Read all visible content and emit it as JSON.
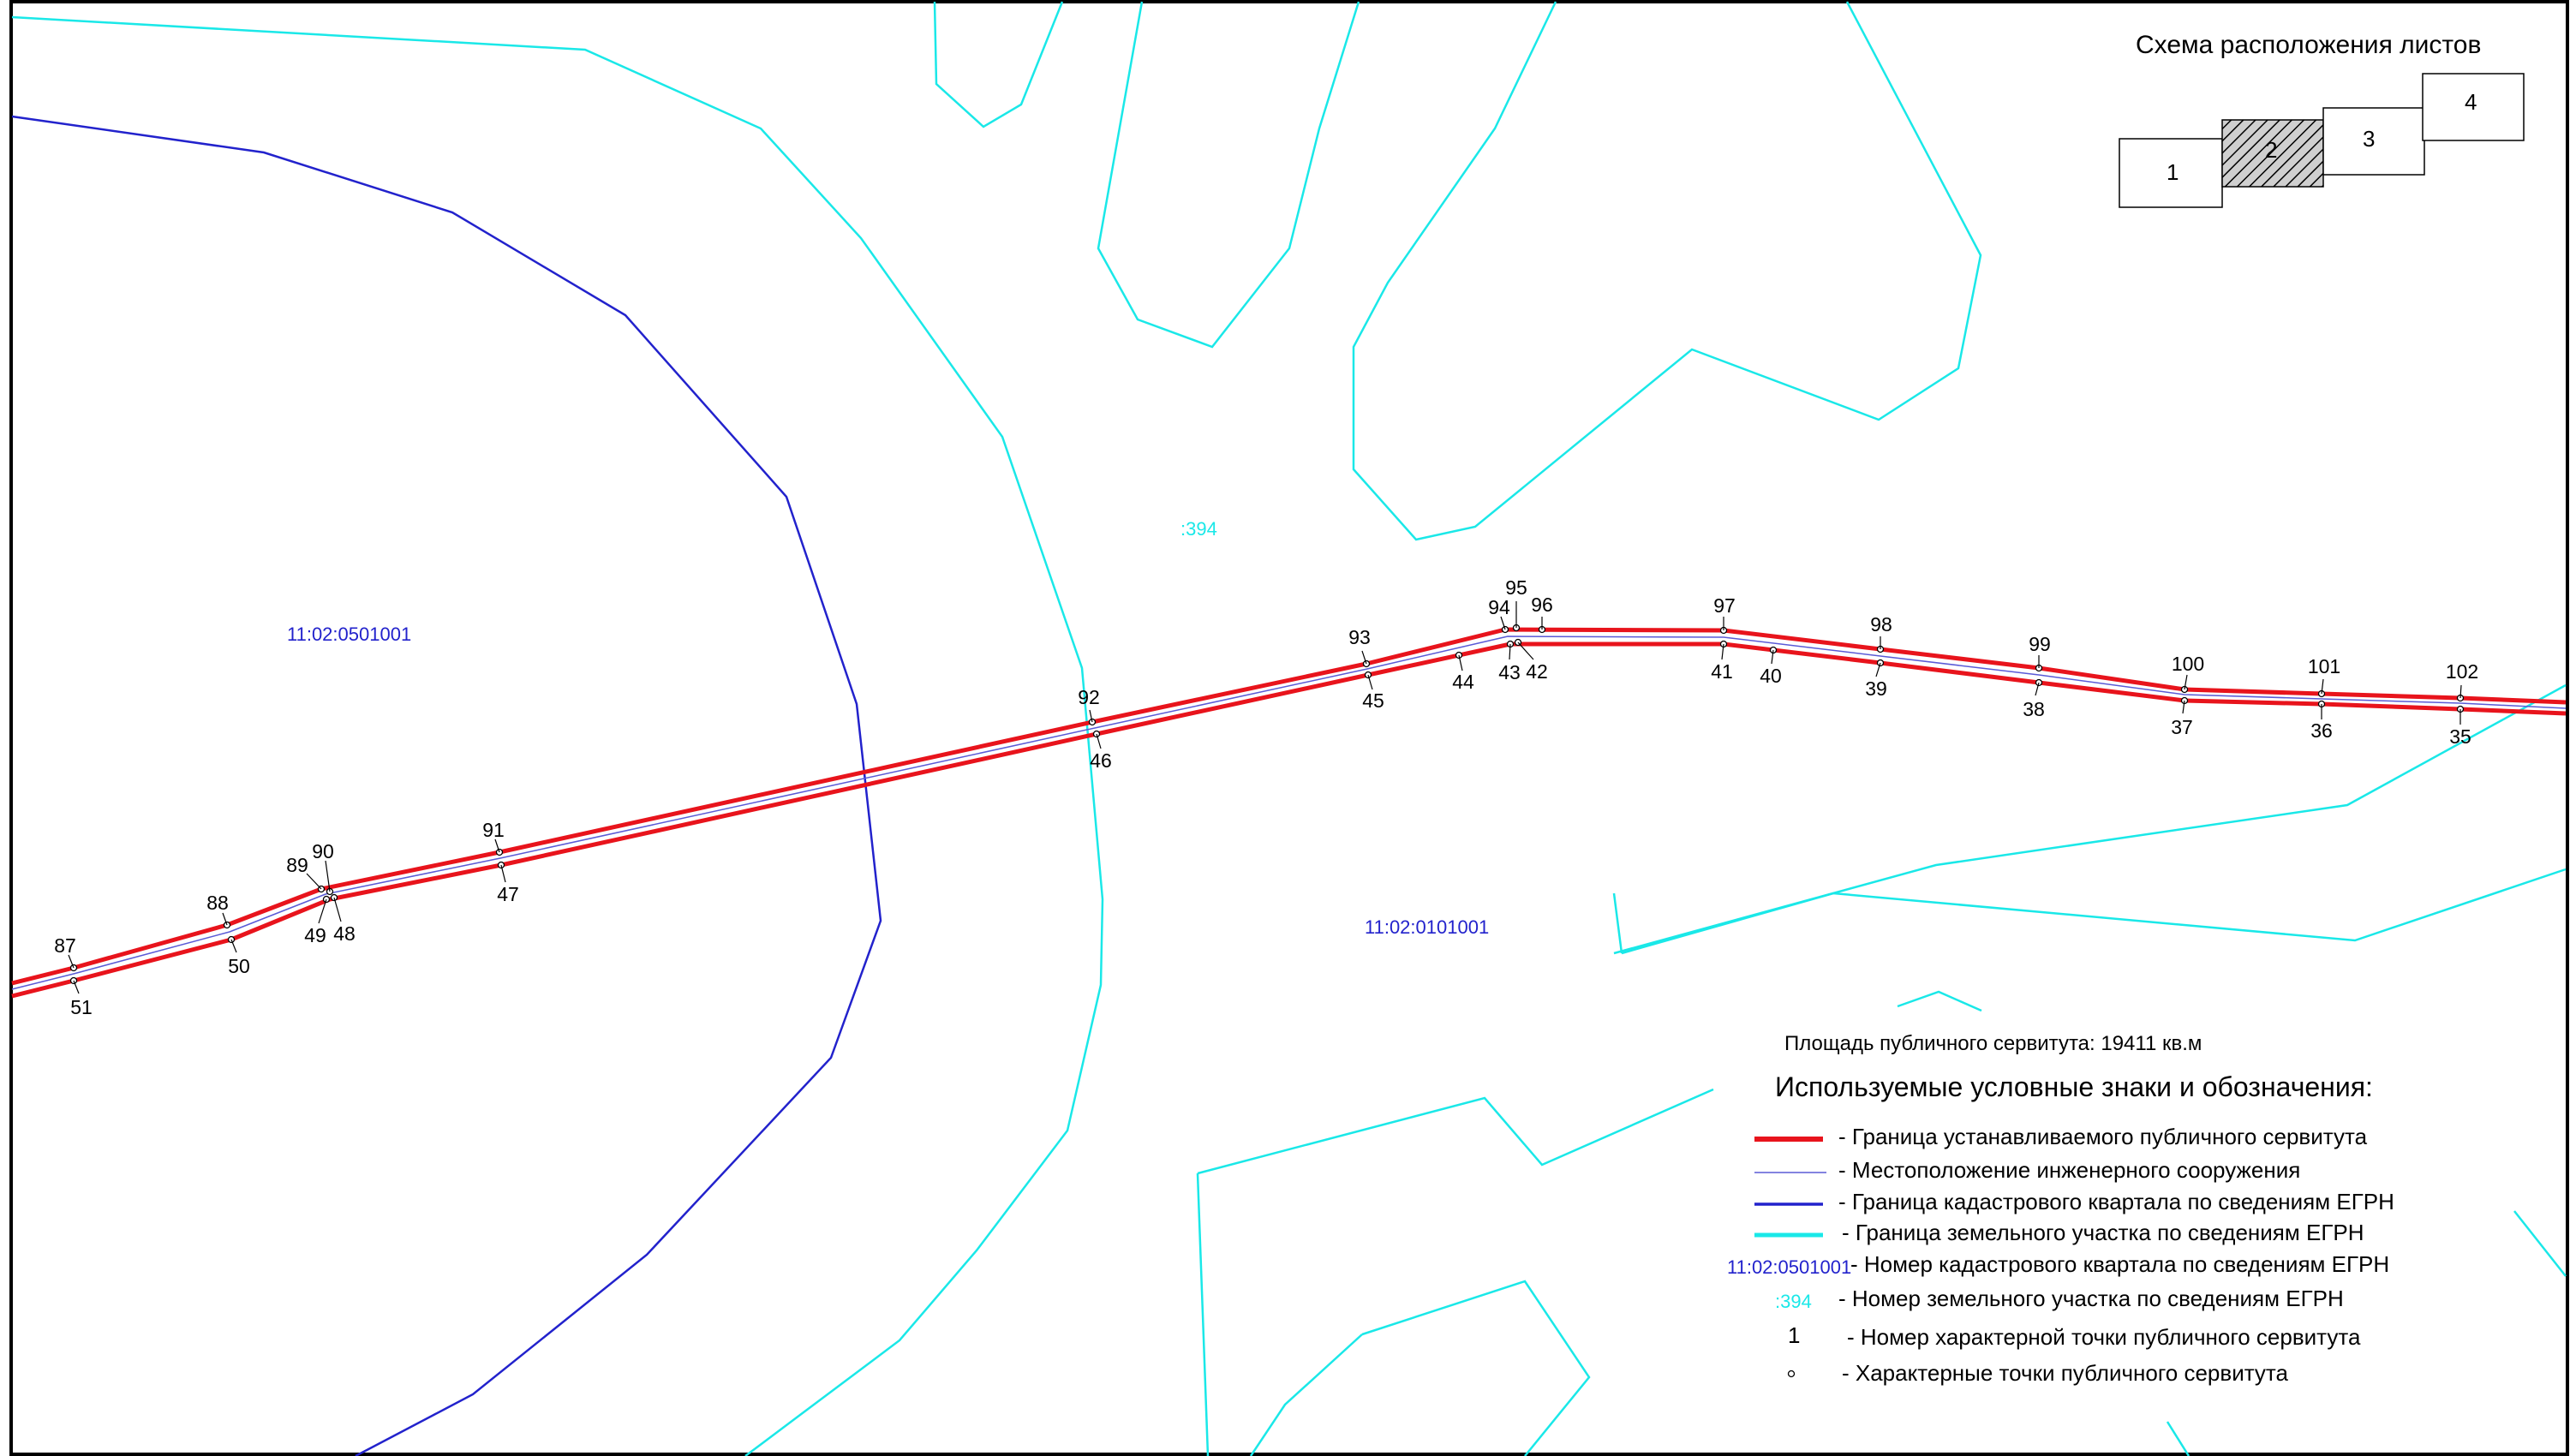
{
  "colors": {
    "servitude_boundary": "#e8141c",
    "engineering_structure": "#5a5ad6",
    "cadastral_quarter": "#2222cc",
    "land_plot": "#1ae8e8",
    "quarter_label": "#2222cc",
    "plot_label": "#1ae8e8",
    "frame": "#000000"
  },
  "inset": {
    "title": "Схема расположения листов",
    "sheets": [
      {
        "label": "1",
        "current": false
      },
      {
        "label": "2",
        "current": true
      },
      {
        "label": "3",
        "current": false
      },
      {
        "label": "4",
        "current": false
      }
    ]
  },
  "map": {
    "quarter_labels": [
      "11:02:0501001",
      "11:02:0101001"
    ],
    "plot_labels": [
      ":394"
    ],
    "points_upper": [
      "87",
      "88",
      "89",
      "90",
      "91",
      "92",
      "93",
      "94",
      "95",
      "96",
      "97",
      "98",
      "99",
      "100",
      "101",
      "102"
    ],
    "points_lower": [
      "51",
      "50",
      "49",
      "48",
      "47",
      "46",
      "45",
      "44",
      "43",
      "42",
      "41",
      "40",
      "39",
      "38",
      "37",
      "36",
      "35"
    ]
  },
  "area": {
    "text": "Площадь публичного сервитута: 19411 кв.м"
  },
  "legend": {
    "title": "Используемые условные знаки и обозначения:",
    "items": [
      {
        "symbol": "red-line-icon",
        "label": "- Граница устанавливаемого публичного сервитута"
      },
      {
        "symbol": "thin-blue-line-icon",
        "label": "-  Местоположение инженерного сооружения"
      },
      {
        "symbol": "blue-line-icon",
        "label": "- Граница кадастрового квартала по сведениям ЕГРН"
      },
      {
        "symbol": "cyan-line-icon",
        "label": "- Граница земельного участка по сведениям ЕГРН"
      },
      {
        "symbol_text": "11:02:0501001",
        "label": "- Номер кадастрового квартала по сведениям ЕГРН"
      },
      {
        "symbol_text": ":394",
        "label": "- Номер земельного участка по сведениям ЕГРН"
      },
      {
        "symbol_text": "1",
        "label": "- Номер характерной точки публичного сервитута"
      },
      {
        "symbol": "point-circle-icon",
        "label": "- Характерные точки публичного сервитута"
      }
    ]
  }
}
